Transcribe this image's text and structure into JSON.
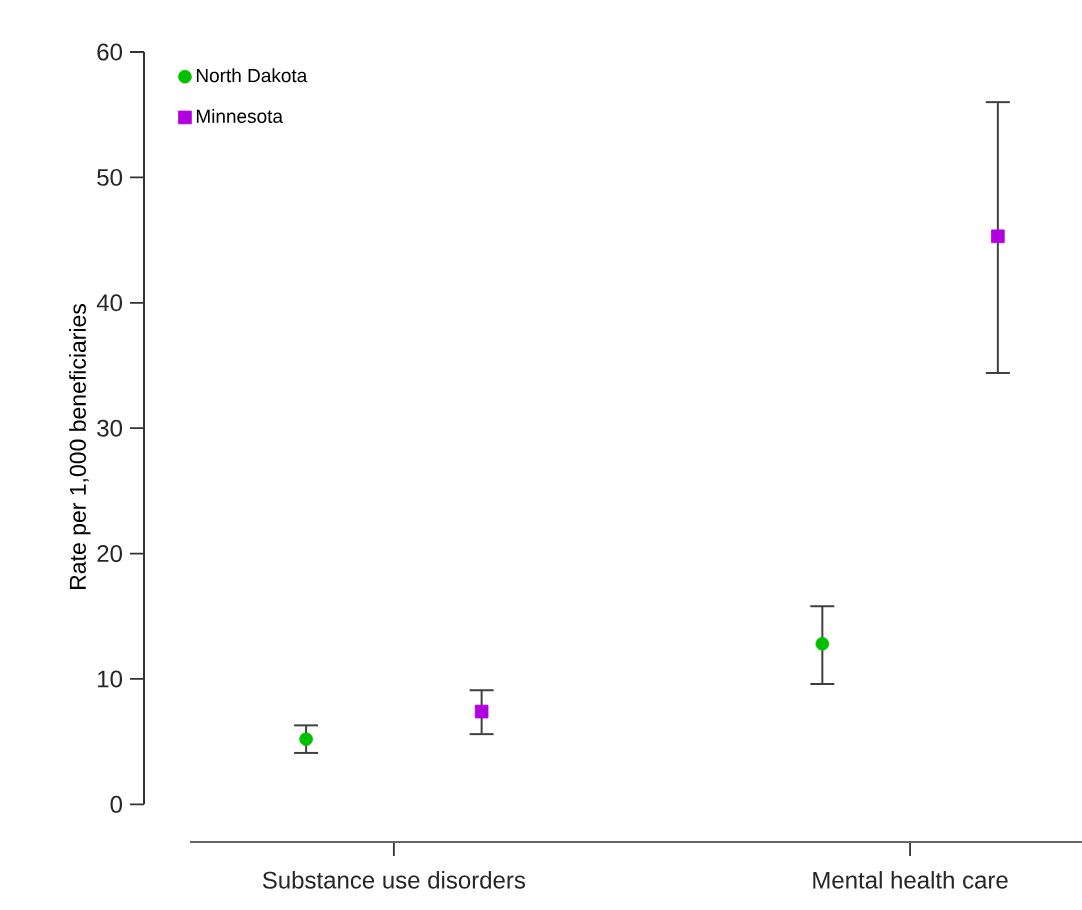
{
  "chart_data": {
    "type": "scatter",
    "ylabel": "Rate per 1,000 beneficiaries",
    "categories": [
      "Substance use disorders",
      "Mental health care"
    ],
    "series": [
      {
        "name": "North Dakota",
        "color": "#00c000",
        "marker": "circle",
        "values": [
          5.2,
          12.8
        ],
        "errors": [
          [
            4.1,
            6.3
          ],
          [
            9.6,
            15.8
          ]
        ]
      },
      {
        "name": "Minnesota",
        "color": "#b000e0",
        "marker": "square",
        "values": [
          7.4,
          45.3
        ],
        "errors": [
          [
            5.6,
            9.1
          ],
          [
            34.4,
            56.0
          ]
        ]
      }
    ],
    "ylim": [
      0,
      60
    ],
    "yticks": [
      0,
      10,
      20,
      30,
      40,
      50,
      60
    ],
    "legend": "top left",
    "grid": false
  }
}
